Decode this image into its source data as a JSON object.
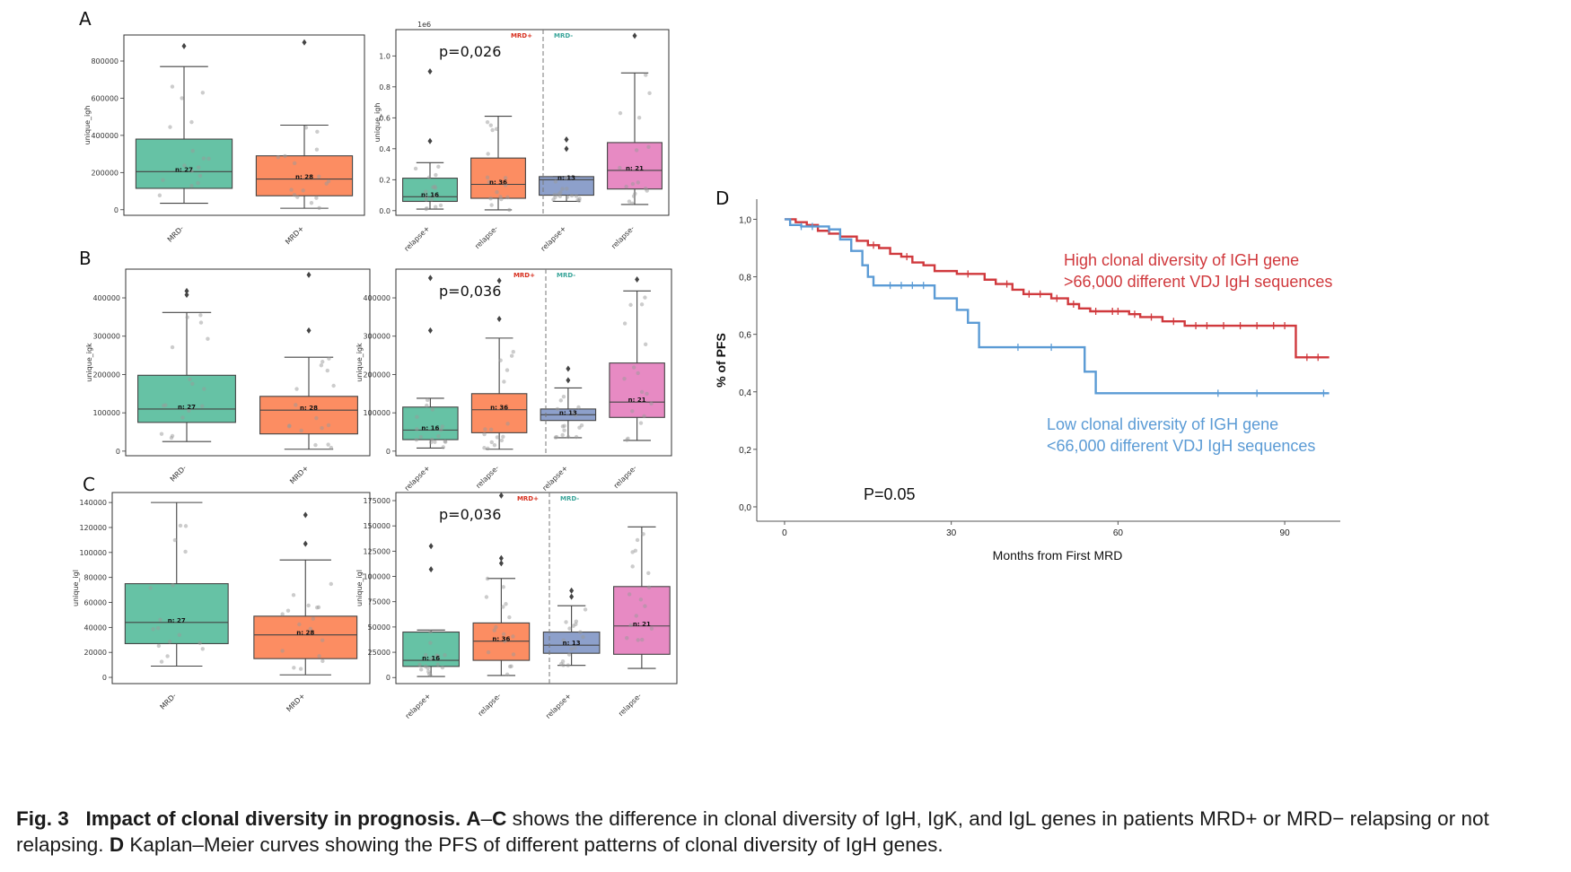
{
  "panels": [
    {
      "letter": "A",
      "ylabel": "unique_igh",
      "offset_label": "",
      "left": {
        "yticks": [
          0,
          200000,
          400000,
          600000,
          800000
        ],
        "ytick_labels": [
          "0",
          "200000",
          "400000",
          "600000",
          "800000"
        ],
        "ylim": [
          -30000,
          940000
        ],
        "categories": [
          "MRD-",
          "MRD+"
        ],
        "boxes": [
          {
            "q1": 115000,
            "median": 205000,
            "q3": 380000,
            "wlo": 35000,
            "whi": 770000,
            "outliers": [
              880000
            ],
            "n_label": "n: 27",
            "color": "#66c2a5"
          },
          {
            "q1": 75000,
            "median": 165000,
            "q3": 290000,
            "wlo": 8000,
            "whi": 455000,
            "outliers": [
              900000
            ],
            "n_label": "n: 28",
            "color": "#fc8d62"
          }
        ]
      },
      "right": {
        "yticks": [
          0.0,
          0.2,
          0.4,
          0.6,
          0.8,
          1.0
        ],
        "ytick_labels": [
          "0.0",
          "0.2",
          "0.4",
          "0.6",
          "0.8",
          "1.0"
        ],
        "ylim": [
          -0.03,
          1.17
        ],
        "exponent": "1e6",
        "pvalue": "p=0,026",
        "groups": [
          "MRD+",
          "MRD-"
        ],
        "categories": [
          "relapse+",
          "relapse-",
          "relapse+",
          "relapse-"
        ],
        "boxes": [
          {
            "q1": 0.06,
            "median": 0.09,
            "q3": 0.21,
            "wlo": 0.01,
            "whi": 0.31,
            "outliers": [
              0.45,
              0.9
            ],
            "n_label": "n: 16",
            "color": "#66c2a5"
          },
          {
            "q1": 0.08,
            "median": 0.17,
            "q3": 0.34,
            "wlo": 0.005,
            "whi": 0.61,
            "outliers": [],
            "n_label": "n: 36",
            "color": "#fc8d62"
          },
          {
            "q1": 0.1,
            "median": 0.2,
            "q3": 0.22,
            "wlo": 0.06,
            "whi": 0.22,
            "outliers": [
              0.4,
              0.46
            ],
            "n_label": "n: 13",
            "color": "#8da0cb"
          },
          {
            "q1": 0.14,
            "median": 0.26,
            "q3": 0.44,
            "wlo": 0.04,
            "whi": 0.89,
            "outliers": [
              1.13
            ],
            "n_label": "n: 21",
            "color": "#e78ac3"
          }
        ]
      }
    },
    {
      "letter": "B",
      "ylabel": "unique_igk",
      "left": {
        "yticks": [
          0,
          100000,
          200000,
          300000,
          400000
        ],
        "ytick_labels": [
          "0",
          "100000",
          "200000",
          "300000",
          "400000"
        ],
        "ylim": [
          -12000,
          475000
        ],
        "categories": [
          "MRD-",
          "MRD+"
        ],
        "boxes": [
          {
            "q1": 75000,
            "median": 110000,
            "q3": 198000,
            "wlo": 25000,
            "whi": 362000,
            "outliers": [
              408000,
              418000
            ],
            "n_label": "n: 27",
            "color": "#66c2a5"
          },
          {
            "q1": 45000,
            "median": 107000,
            "q3": 143000,
            "wlo": 5000,
            "whi": 245000,
            "outliers": [
              315000,
              460000
            ],
            "n_label": "n: 28",
            "color": "#fc8d62"
          }
        ]
      },
      "right": {
        "yticks": [
          0,
          100000,
          200000,
          300000,
          400000
        ],
        "ytick_labels": [
          "0",
          "100000",
          "200000",
          "300000",
          "400000"
        ],
        "ylim": [
          -12000,
          475000
        ],
        "pvalue": "p=0,036",
        "groups": [
          "MRD+",
          "MRD-"
        ],
        "categories": [
          "relapse+",
          "relapse-",
          "relapse+",
          "relapse-"
        ],
        "boxes": [
          {
            "q1": 30000,
            "median": 55000,
            "q3": 115000,
            "wlo": 8000,
            "whi": 138000,
            "outliers": [
              315000,
              452000
            ],
            "n_label": "n: 16",
            "color": "#66c2a5"
          },
          {
            "q1": 48000,
            "median": 108000,
            "q3": 150000,
            "wlo": 5000,
            "whi": 295000,
            "outliers": [
              345000,
              445000
            ],
            "n_label": "n: 36",
            "color": "#fc8d62"
          },
          {
            "q1": 80000,
            "median": 95000,
            "q3": 110000,
            "wlo": 35000,
            "whi": 165000,
            "outliers": [
              185000,
              215000
            ],
            "n_label": "n: 13",
            "color": "#8da0cb"
          },
          {
            "q1": 88000,
            "median": 128000,
            "q3": 230000,
            "wlo": 28000,
            "whi": 418000,
            "outliers": [
              448000
            ],
            "n_label": "n: 21",
            "color": "#e78ac3"
          }
        ]
      }
    },
    {
      "letter": "C",
      "ylabel": "unique_igl",
      "left": {
        "yticks": [
          0,
          20000,
          40000,
          60000,
          80000,
          100000,
          120000,
          140000
        ],
        "ytick_labels": [
          "0",
          "20000",
          "40000",
          "60000",
          "80000",
          "100000",
          "120000",
          "140000"
        ],
        "ylim": [
          -5000,
          148000
        ],
        "categories": [
          "MRD-",
          "MRD+"
        ],
        "boxes": [
          {
            "q1": 27000,
            "median": 44000,
            "q3": 75000,
            "wlo": 9000,
            "whi": 140000,
            "outliers": [],
            "n_label": "n: 27",
            "color": "#66c2a5"
          },
          {
            "q1": 15000,
            "median": 34000,
            "q3": 49000,
            "wlo": 2000,
            "whi": 94000,
            "outliers": [
              107000,
              130000
            ],
            "n_label": "n: 28",
            "color": "#fc8d62"
          }
        ]
      },
      "right": {
        "yticks": [
          0,
          25000,
          50000,
          75000,
          100000,
          125000,
          150000,
          175000
        ],
        "ytick_labels": [
          "0",
          "25000",
          "50000",
          "75000",
          "100000",
          "125000",
          "150000",
          "175000"
        ],
        "ylim": [
          -6000,
          183000
        ],
        "pvalue": "p=0,036",
        "groups": [
          "MRD+",
          "MRD-"
        ],
        "categories": [
          "relapse+",
          "relapse-",
          "relapse+",
          "relapse-"
        ],
        "boxes": [
          {
            "q1": 11000,
            "median": 17000,
            "q3": 45000,
            "wlo": 1000,
            "whi": 47000,
            "outliers": [
              107000,
              130000
            ],
            "n_label": "n: 16",
            "color": "#66c2a5"
          },
          {
            "q1": 17000,
            "median": 36000,
            "q3": 54000,
            "wlo": 2000,
            "whi": 98000,
            "outliers": [
              113000,
              118000,
              180000
            ],
            "n_label": "n: 36",
            "color": "#fc8d62"
          },
          {
            "q1": 24000,
            "median": 32000,
            "q3": 45000,
            "wlo": 12000,
            "whi": 71000,
            "outliers": [
              80000,
              86000
            ],
            "n_label": "n: 13",
            "color": "#8da0cb"
          },
          {
            "q1": 23000,
            "median": 51000,
            "q3": 90000,
            "wlo": 9000,
            "whi": 149000,
            "outliers": [],
            "n_label": "n: 21",
            "color": "#e78ac3"
          }
        ]
      }
    }
  ],
  "km": {
    "letter": "D",
    "ylabel": "% of PFS",
    "xlabel": "Months from First MRD",
    "xticks": [
      0,
      30,
      60,
      90
    ],
    "xtick_labels": [
      "0",
      "30",
      "60",
      "90"
    ],
    "yticks": [
      0.0,
      0.2,
      0.4,
      0.6,
      0.8,
      1.0
    ],
    "ytick_labels": [
      "0,0",
      "0,2",
      "0,4",
      "0,6",
      "0,8",
      "1,0"
    ],
    "xlim": [
      -5,
      100
    ],
    "ylim": [
      -0.05,
      1.07
    ],
    "pvalue": "P=0.05",
    "series": [
      {
        "color": "#d0393d",
        "label_lines": [
          "High clonal diversity of IGH gene",
          ">66,000  different VDJ IgH sequences"
        ],
        "steps": [
          [
            0,
            1.0
          ],
          [
            2,
            0.99
          ],
          [
            4,
            0.98
          ],
          [
            6,
            0.96
          ],
          [
            8,
            0.95
          ],
          [
            10,
            0.94
          ],
          [
            13,
            0.925
          ],
          [
            15,
            0.91
          ],
          [
            17,
            0.9
          ],
          [
            19,
            0.88
          ],
          [
            21,
            0.87
          ],
          [
            23,
            0.85
          ],
          [
            25,
            0.84
          ],
          [
            27,
            0.82
          ],
          [
            31,
            0.81
          ],
          [
            36,
            0.79
          ],
          [
            38,
            0.775
          ],
          [
            41,
            0.755
          ],
          [
            43,
            0.74
          ],
          [
            48,
            0.725
          ],
          [
            51,
            0.705
          ],
          [
            53,
            0.69
          ],
          [
            55,
            0.68
          ],
          [
            62,
            0.67
          ],
          [
            64,
            0.66
          ],
          [
            68,
            0.645
          ],
          [
            72,
            0.63
          ],
          [
            92,
            0.52
          ],
          [
            98,
            0.52
          ]
        ],
        "censors": [
          16,
          22,
          33,
          40,
          44,
          46,
          49,
          52,
          56,
          59,
          60,
          63,
          66,
          70,
          74,
          76,
          79,
          82,
          85,
          88,
          90,
          94,
          96
        ]
      },
      {
        "color": "#5b9bd5",
        "label_lines": [
          "Low clonal diversity of IGH gene",
          "<66,000  different VDJ IgH sequences"
        ],
        "steps": [
          [
            0,
            1.0
          ],
          [
            1,
            0.98
          ],
          [
            3,
            0.975
          ],
          [
            8,
            0.965
          ],
          [
            10,
            0.93
          ],
          [
            12,
            0.89
          ],
          [
            14,
            0.84
          ],
          [
            15,
            0.8
          ],
          [
            16,
            0.77
          ],
          [
            27,
            0.725
          ],
          [
            31,
            0.685
          ],
          [
            33,
            0.64
          ],
          [
            35,
            0.555
          ],
          [
            54,
            0.47
          ],
          [
            56,
            0.395
          ],
          [
            98,
            0.395
          ]
        ],
        "censors": [
          3,
          5,
          8,
          19,
          21,
          23,
          25,
          42,
          48,
          78,
          85,
          97
        ]
      }
    ]
  },
  "caption": {
    "fig": "Fig. 3",
    "title": "Impact of clonal diversity in prognosis.",
    "letters_ac": "A",
    "dash": "–",
    "letters_c": "C",
    "text1": " shows the difference in clonal diversity of IgH, IgK, and IgL genes in patients MRD+ or MRD− relapsing or not relapsing. ",
    "letter_d": "D",
    "text2": " Kaplan–Meier curves showing the PFS of different patterns of clonal diversity of IgH genes."
  }
}
